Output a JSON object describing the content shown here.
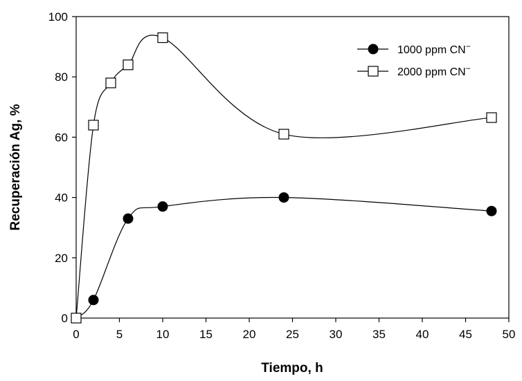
{
  "chart_data": {
    "type": "line",
    "title": "",
    "xlabel": "Tiempo, h",
    "ylabel": "Recuperación Ag, %",
    "xlim": [
      0,
      50
    ],
    "ylim": [
      0,
      100
    ],
    "xticks": [
      0,
      5,
      10,
      15,
      20,
      25,
      30,
      35,
      40,
      45,
      50
    ],
    "yticks": [
      0,
      20,
      40,
      60,
      80,
      100
    ],
    "grid": false,
    "legend_position": "top-right",
    "series": [
      {
        "name": "1000 ppm CN",
        "superscript": "−",
        "marker": "filled-circle",
        "color": "#000000",
        "x": [
          0,
          2,
          6,
          10,
          24,
          48
        ],
        "y": [
          0,
          6,
          33,
          37,
          40,
          35.5
        ]
      },
      {
        "name": "2000 ppm CN",
        "superscript": "−",
        "marker": "open-square",
        "color": "#000000",
        "x": [
          0,
          2,
          4,
          6,
          10,
          24,
          48
        ],
        "y": [
          0,
          64,
          78,
          84,
          93,
          61,
          66.5
        ]
      }
    ]
  }
}
